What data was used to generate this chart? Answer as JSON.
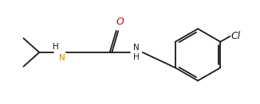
{
  "background": "#ffffff",
  "bond_color": "#1a1a1a",
  "N_color": "#cc8800",
  "O_color": "#cc0000",
  "Cl_color": "#1a1a1a",
  "NH2_color": "#1a1a1a",
  "figsize": [
    3.26,
    1.31
  ],
  "dpi": 100,
  "xlim": [
    0,
    326
  ],
  "ylim": [
    0,
    131
  ],
  "lw": 1.3
}
